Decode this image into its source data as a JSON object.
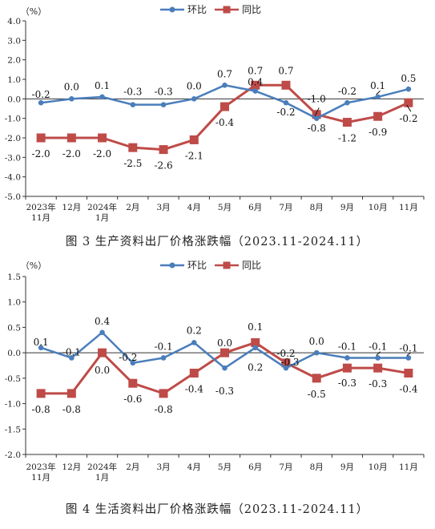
{
  "colors": {
    "mom": "#4a7ebb",
    "yoy": "#be4b48",
    "axis": "#333333",
    "text": "#222222"
  },
  "chart_data": [
    {
      "type": "line",
      "title": "图 3 生产资料出厂价格涨跌幅（2023.11-2024.11）",
      "unit_label": "（%）",
      "ylim": [
        -5.0,
        4.0
      ],
      "yticks": [
        "4.0",
        "3.0",
        "2.0",
        "1.0",
        "0.0",
        "-1.0",
        "-2.0",
        "-3.0",
        "-4.0",
        "-5.0"
      ],
      "ytick_values": [
        4,
        3,
        2,
        1,
        0,
        -1,
        -2,
        -3,
        -4,
        -5
      ],
      "categories": [
        [
          "2023年",
          "11月"
        ],
        [
          "12月"
        ],
        [
          "2024年",
          "1月"
        ],
        [
          "2月"
        ],
        [
          "3月"
        ],
        [
          "4月"
        ],
        [
          "5月"
        ],
        [
          "6月"
        ],
        [
          "7月"
        ],
        [
          "8月"
        ],
        [
          "9月"
        ],
        [
          "10月"
        ],
        [
          "11月"
        ]
      ],
      "legend": [
        "环比",
        "同比"
      ],
      "legend_position": "top-center",
      "series": [
        {
          "name": "环比",
          "values": [
            -0.2,
            0.0,
            0.1,
            -0.3,
            -0.3,
            0.0,
            0.7,
            0.4,
            -0.2,
            -1.0,
            -0.2,
            0.1,
            0.5
          ],
          "labels": [
            "-0.2",
            "0.0",
            "0.1",
            "-0.3",
            "-0.3",
            "0.0",
            "0.7",
            "0.4",
            "-0.2",
            "-1.0",
            "-0.2",
            "0.1",
            "0.5"
          ]
        },
        {
          "name": "同比",
          "values": [
            -2.0,
            -2.0,
            -2.0,
            -2.5,
            -2.6,
            -2.1,
            -0.4,
            0.7,
            0.7,
            -0.8,
            -1.2,
            -0.9,
            -0.2
          ],
          "labels": [
            "-2.0",
            "-2.0",
            "-2.0",
            "-2.5",
            "-2.6",
            "-2.1",
            "-0.4",
            "0.7",
            "0.7",
            "-0.8",
            "-1.2",
            "-0.9",
            "-0.2"
          ]
        }
      ]
    },
    {
      "type": "line",
      "title": "图 4 生活资料出厂价格涨跌幅（2023.11-2024.11）",
      "unit_label": "（%）",
      "ylim": [
        -2.0,
        1.5
      ],
      "yticks": [
        "1.5",
        "1.0",
        "0.5",
        "0.0",
        "-0.5",
        "-1.0",
        "-1.5",
        "-2.0"
      ],
      "ytick_values": [
        1.5,
        1.0,
        0.5,
        0,
        -0.5,
        -1.0,
        -1.5,
        -2.0
      ],
      "categories": [
        [
          "2023年",
          "11月"
        ],
        [
          "12月"
        ],
        [
          "2024年",
          "1月"
        ],
        [
          "2月"
        ],
        [
          "3月"
        ],
        [
          "4月"
        ],
        [
          "5月"
        ],
        [
          "6月"
        ],
        [
          "7月"
        ],
        [
          "8月"
        ],
        [
          "9月"
        ],
        [
          "10月"
        ],
        [
          "11月"
        ]
      ],
      "legend": [
        "环比",
        "同比"
      ],
      "legend_position": "top-center",
      "series": [
        {
          "name": "环比",
          "values": [
            0.1,
            -0.1,
            0.4,
            -0.2,
            -0.1,
            0.2,
            -0.3,
            0.1,
            -0.3,
            0.0,
            -0.1,
            -0.1,
            -0.1
          ],
          "labels": [
            "0.1",
            "-0.1",
            "0.4",
            "-0.2",
            "-0.1",
            "0.2",
            "-0.3",
            "0.1",
            "-0.3",
            "0.0",
            "-0.1",
            "-0.1",
            "-0.1"
          ]
        },
        {
          "name": "同比",
          "values": [
            -0.8,
            -0.8,
            0.0,
            -0.6,
            -0.8,
            -0.4,
            0.0,
            0.2,
            -0.2,
            -0.5,
            -0.3,
            -0.3,
            -0.4
          ],
          "labels": [
            "-0.8",
            "-0.8",
            "0.0",
            "-0.6",
            "-0.8",
            "-0.4",
            "0.0",
            "0.2",
            "-0.2",
            "-0.5",
            "-0.3",
            "-0.3",
            "-0.4"
          ]
        }
      ]
    }
  ]
}
